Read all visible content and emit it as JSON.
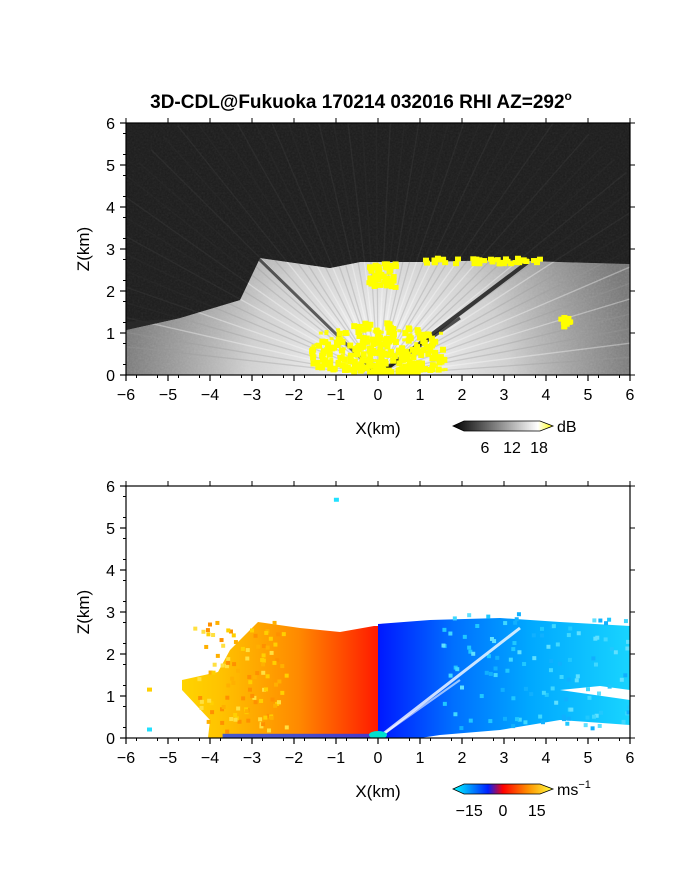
{
  "title": "3D-CDL@Fukuoka 170214 032016 RHI AZ=292",
  "title_degree": "o",
  "chart_data": [
    {
      "type": "heatmap",
      "name": "snr",
      "xlabel": "X(km)",
      "ylabel": "Z(km)",
      "xlim": [
        -6,
        6
      ],
      "ylim": [
        0,
        6
      ],
      "xticks": [
        "-6",
        "-5",
        "-4",
        "-3",
        "-2",
        "-1",
        "0",
        "1",
        "2",
        "3",
        "4",
        "5",
        "6"
      ],
      "yticks": [
        "0",
        "1",
        "2",
        "3",
        "4",
        "5",
        "6"
      ],
      "colorbar": {
        "unit": "dB",
        "ticks": [
          "6",
          "12",
          "18"
        ],
        "tick_values": [
          6,
          12,
          18
        ],
        "range": [
          0,
          20
        ],
        "colors": [
          "#000000",
          "#ffffff",
          "#ffff00"
        ]
      },
      "cloud_base_km": 2.65,
      "echo_top_km": 2.8,
      "saturated_blobs": [
        {
          "x": 0.0,
          "z": 0.45,
          "note": "near-radar saturation"
        },
        {
          "x": 0.1,
          "z": 2.35
        },
        {
          "x": 2.5,
          "z": 2.7
        },
        {
          "x": 4.5,
          "z": 1.25
        }
      ]
    },
    {
      "type": "heatmap",
      "name": "doppler",
      "xlabel": "X(km)",
      "ylabel": "Z(km)",
      "xlim": [
        -6,
        6
      ],
      "ylim": [
        0,
        6
      ],
      "xticks": [
        "-6",
        "-5",
        "-4",
        "-3",
        "-2",
        "-1",
        "0",
        "1",
        "2",
        "3",
        "4",
        "5",
        "6"
      ],
      "yticks": [
        "0",
        "1",
        "2",
        "3",
        "4",
        "5",
        "6"
      ],
      "colorbar": {
        "unit": "ms",
        "unit_sup": "−1",
        "ticks": [
          "−15",
          "0",
          "15"
        ],
        "tick_values": [
          -15,
          0,
          15
        ],
        "range": [
          -20,
          20
        ],
        "colors": [
          "#00ffff",
          "#0000ff",
          "#ff0000",
          "#ffff00"
        ]
      },
      "left_side_velocity": "positive (red-yellow)",
      "right_side_velocity": "negative (blue-cyan)"
    }
  ],
  "colors": {
    "background": "#ffffff",
    "axis": "#000000",
    "snr_saturation": "#ffff00",
    "doppler_positive": "#ff6000",
    "doppler_negative": "#00c8ff"
  }
}
